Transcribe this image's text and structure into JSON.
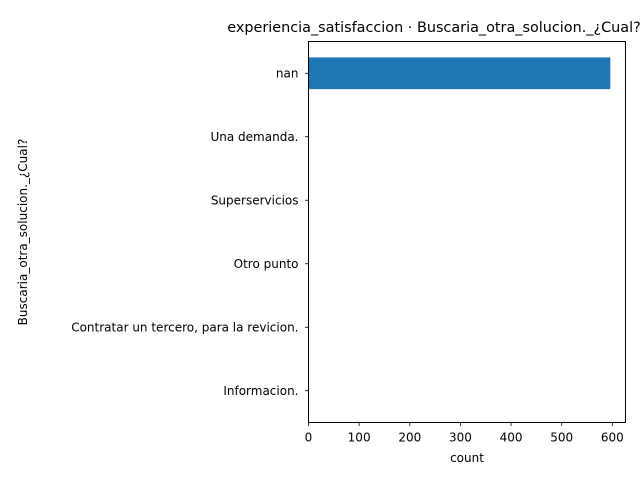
{
  "chart_data": {
    "type": "bar",
    "orientation": "horizontal",
    "title": "experiencia_satisfaccion · Buscaria_otra_solucion._¿Cual?",
    "xlabel": "count",
    "ylabel": "Buscaria_otra_solucion._¿Cual?",
    "categories": [
      "nan",
      "Una demanda.",
      "Superservicios",
      "Otro punto",
      "Contratar un tercero, para la revicion.",
      "Informacion."
    ],
    "values": [
      596,
      1,
      1,
      1,
      1,
      1
    ],
    "xlim": [
      0,
      626
    ],
    "xticks": [
      0,
      100,
      200,
      300,
      400,
      500,
      600
    ],
    "grid": false,
    "bar_color": "#1f77b4"
  }
}
